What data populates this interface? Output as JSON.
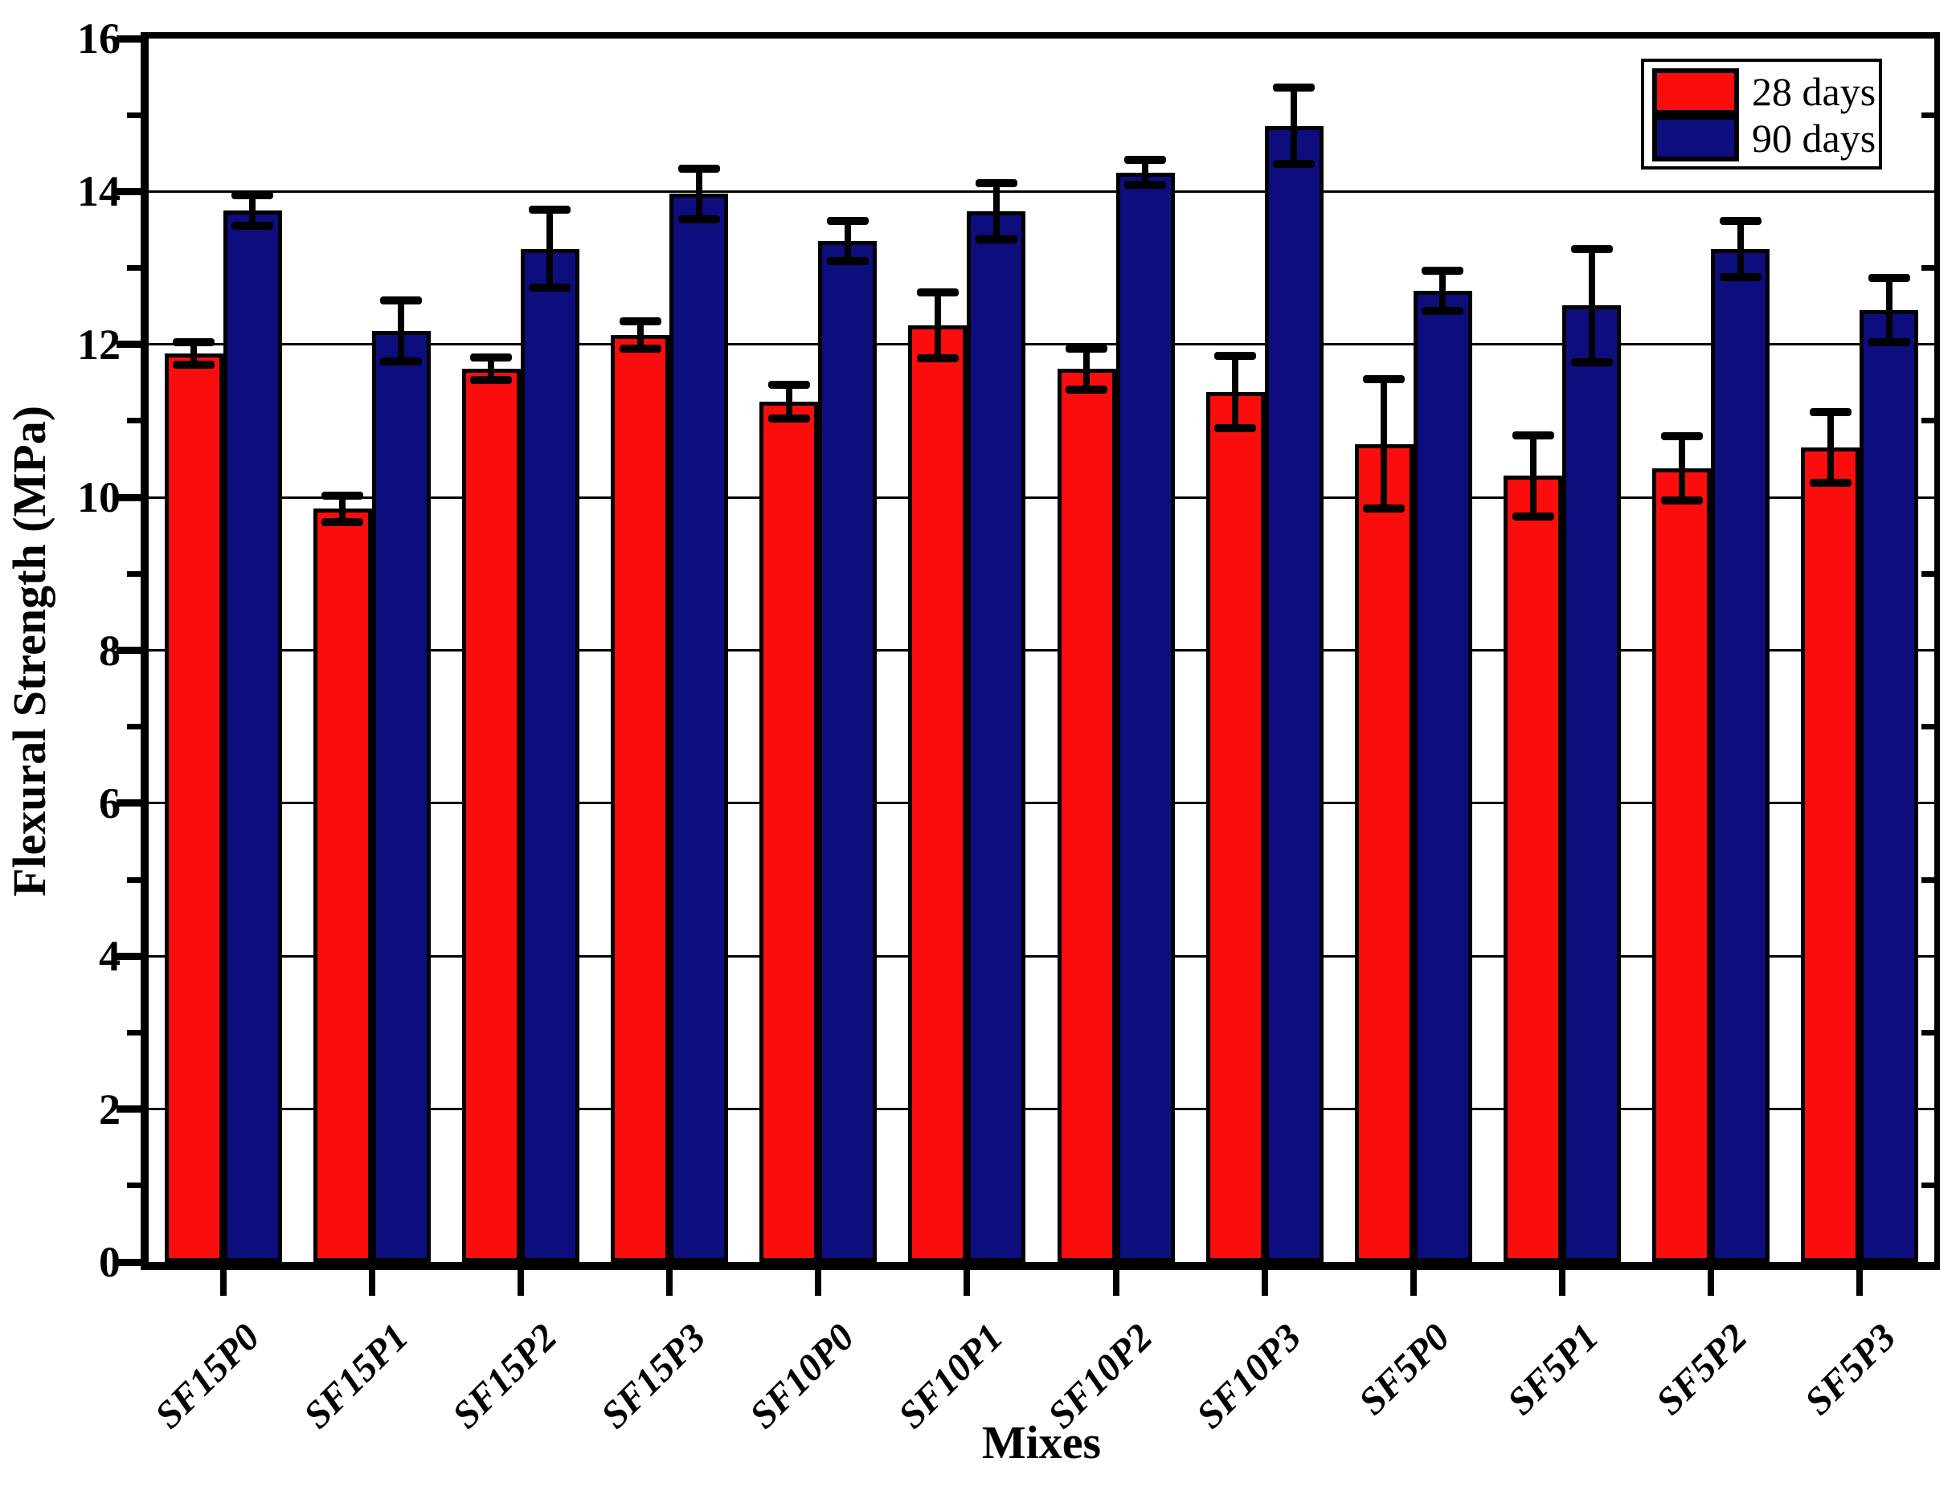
{
  "chart_data": {
    "type": "bar",
    "title": "",
    "xlabel": "Mixes",
    "ylabel": "Flexural Strength (MPa)",
    "ylim": [
      0,
      16
    ],
    "y_major_step": 2,
    "y_minor_step": 1,
    "y_tick_labels": [
      "0",
      "2",
      "4",
      "6",
      "8",
      "10",
      "12",
      "14",
      "16"
    ],
    "grid": true,
    "error_bars": true,
    "legend_position": "top-right-inside",
    "categories": [
      "SF15P0",
      "SF15P1",
      "SF15P2",
      "SF15P3",
      "SF10P0",
      "SF10P1",
      "SF10P2",
      "SF10P3",
      "SF5P0",
      "SF5P1",
      "SF5P2",
      "SF5P3"
    ],
    "series": [
      {
        "name": "28 days",
        "color": "#fb0d0d",
        "values": [
          11.88,
          9.85,
          11.68,
          12.12,
          11.25,
          12.25,
          11.68,
          11.38,
          10.7,
          10.28,
          10.38,
          10.65
        ],
        "errors": [
          0.15,
          0.17,
          0.15,
          0.18,
          0.22,
          0.43,
          0.27,
          0.47,
          0.85,
          0.53,
          0.42,
          0.46
        ]
      },
      {
        "name": "90 days",
        "color": "#0d0d7d",
        "values": [
          13.75,
          12.18,
          13.25,
          13.97,
          13.35,
          13.74,
          14.25,
          14.86,
          12.7,
          12.51,
          13.25,
          12.45
        ],
        "errors": [
          0.2,
          0.4,
          0.51,
          0.33,
          0.26,
          0.37,
          0.16,
          0.5,
          0.26,
          0.74,
          0.37,
          0.42
        ]
      }
    ]
  },
  "axes": {
    "y_title": "Flexural Strength (MPa)",
    "x_title": "Mixes"
  },
  "legend": {
    "items": [
      {
        "label": "28 days",
        "color": "#fb0d0d"
      },
      {
        "label": "90 days",
        "color": "#0d0d7d"
      }
    ]
  },
  "colors": {
    "frame": "#000000",
    "background": "#ffffff",
    "series_28_days": "#fb0d0d",
    "series_90_days": "#0d0d7d"
  }
}
